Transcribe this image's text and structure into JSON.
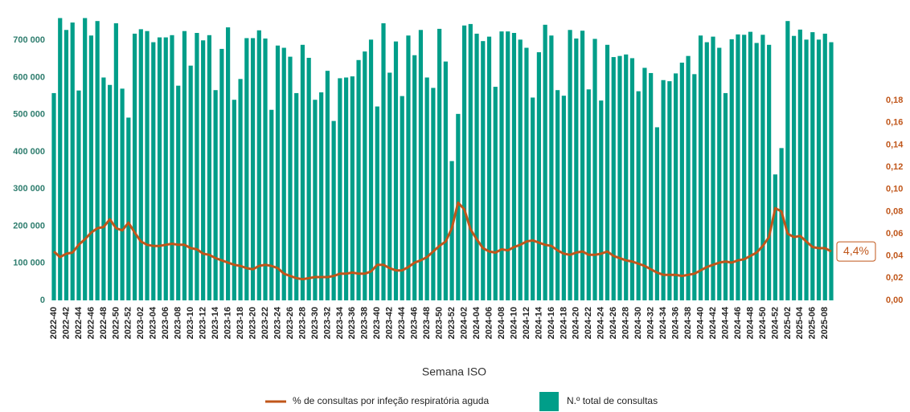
{
  "chart_data": {
    "type": "bar",
    "x_label": "Semana ISO",
    "categories": [
      "2022-40",
      null,
      "2022-42",
      null,
      "2022-44",
      null,
      "2022-46",
      null,
      "2022-48",
      null,
      "2022-50",
      null,
      "2022-52",
      null,
      "2023-02",
      null,
      "2023-04",
      null,
      "2023-06",
      null,
      "2023-08",
      null,
      "2023-10",
      null,
      "2023-12",
      null,
      "2023-14",
      null,
      "2023-16",
      null,
      "2023-18",
      null,
      "2023-20",
      null,
      "2023-22",
      null,
      "2023-24",
      null,
      "2023-26",
      null,
      "2023-28",
      null,
      "2023-30",
      null,
      "2023-32",
      null,
      "2023-34",
      null,
      "2023-36",
      null,
      "2023-38",
      null,
      "2023-40",
      null,
      "2023-42",
      null,
      "2023-44",
      null,
      "2023-46",
      null,
      "2023-48",
      null,
      "2023-50",
      null,
      "2023-52",
      null,
      "2024-02",
      null,
      "2024-04",
      null,
      "2024-06",
      null,
      "2024-08",
      null,
      "2024-10",
      null,
      "2024-12",
      null,
      "2024-14",
      null,
      "2024-16",
      null,
      "2024-18",
      null,
      "2024-20",
      null,
      "2024-22",
      null,
      "2024-24",
      null,
      "2024-26",
      null,
      "2024-28",
      null,
      "2024-30",
      null,
      "2024-32",
      null,
      "2024-34",
      null,
      "2024-36",
      null,
      "2024-38",
      null,
      "2024-40",
      null,
      "2024-42",
      null,
      "2024-44",
      null,
      "2024-46",
      null,
      "2024-48",
      null,
      "2024-50",
      null,
      "2024-52",
      null,
      "2025-02",
      null,
      "2025-04",
      null,
      "2025-06",
      null,
      "2025-08",
      null
    ],
    "series": [
      {
        "name": "% de consultas por infeção respiratória aguda",
        "color": "#c0561a",
        "type": "line",
        "axis": "y2",
        "values": [
          0.044,
          0.039,
          0.042,
          0.043,
          0.05,
          0.055,
          0.061,
          0.065,
          0.066,
          0.073,
          0.065,
          0.063,
          0.07,
          0.061,
          0.053,
          0.05,
          0.049,
          0.049,
          0.05,
          0.051,
          0.05,
          0.05,
          0.047,
          0.046,
          0.042,
          0.041,
          0.038,
          0.036,
          0.034,
          0.032,
          0.031,
          0.029,
          0.028,
          0.031,
          0.032,
          0.031,
          0.029,
          0.024,
          0.022,
          0.02,
          0.019,
          0.02,
          0.021,
          0.021,
          0.021,
          0.022,
          0.024,
          0.024,
          0.025,
          0.024,
          0.024,
          0.026,
          0.032,
          0.032,
          0.029,
          0.027,
          0.027,
          0.03,
          0.034,
          0.036,
          0.039,
          0.044,
          0.049,
          0.053,
          0.065,
          0.088,
          0.082,
          0.064,
          0.055,
          0.047,
          0.044,
          0.043,
          0.046,
          0.045,
          0.048,
          0.05,
          0.053,
          0.054,
          0.052,
          0.05,
          0.049,
          0.045,
          0.042,
          0.041,
          0.043,
          0.044,
          0.041,
          0.041,
          0.042,
          0.044,
          0.04,
          0.038,
          0.036,
          0.035,
          0.033,
          0.031,
          0.028,
          0.025,
          0.023,
          0.023,
          0.023,
          0.022,
          0.023,
          0.024,
          0.027,
          0.03,
          0.032,
          0.034,
          0.035,
          0.034,
          0.036,
          0.037,
          0.04,
          0.043,
          0.049,
          0.057,
          0.083,
          0.08,
          0.06,
          0.057,
          0.058,
          0.053,
          0.048,
          0.047,
          0.047,
          0.044
        ]
      },
      {
        "name": "N.º total de consultas",
        "color": "#009e89",
        "type": "bar",
        "values": [
          558000,
          760000,
          728000,
          748000,
          565000,
          760000,
          713000,
          752000,
          600000,
          580000,
          746000,
          570000,
          492000,
          718000,
          730000,
          725000,
          695000,
          708000,
          708000,
          714000,
          578000,
          725000,
          632000,
          720000,
          700000,
          714000,
          566000,
          677000,
          735000,
          540000,
          596000,
          706000,
          706000,
          727000,
          705000,
          513000,
          686000,
          680000,
          656000,
          558000,
          688000,
          653000,
          540000,
          560000,
          618000,
          483000,
          598000,
          600000,
          603000,
          647000,
          670000,
          702000,
          522000,
          746000,
          613000,
          697000,
          550000,
          713000,
          660000,
          728000,
          600000,
          572000,
          731000,
          643000,
          375000,
          502000,
          740000,
          744000,
          718000,
          698000,
          710000,
          575000,
          724000,
          724000,
          720000,
          702000,
          680000,
          546000,
          668000,
          742000,
          713000,
          566000,
          551000,
          728000,
          705000,
          726000,
          568000,
          704000,
          538000,
          688000,
          655000,
          658000,
          662000,
          652000,
          563000,
          626000,
          612000,
          466000,
          593000,
          590000,
          611000,
          640000,
          658000,
          609000,
          713000,
          695000,
          710000,
          680000,
          558000,
          703000,
          716000,
          715000,
          723000,
          693000,
          715000,
          688000,
          339000,
          410000,
          752000,
          712000,
          729000,
          702000,
          722000,
          702000,
          718000,
          695000
        ]
      }
    ],
    "ylim": [
      0,
      800000
    ],
    "yticks": [
      0,
      {
        "value": 100000,
        "label": "100 000"
      },
      {
        "value": 200000,
        "label": "200 000"
      },
      {
        "value": 300000,
        "label": "300 000"
      },
      {
        "value": 400000,
        "label": "400 000"
      },
      {
        "value": 500000,
        "label": "500 000"
      },
      {
        "value": 600000,
        "label": "600 000"
      },
      {
        "value": 700000,
        "label": "700 000"
      }
    ],
    "y2lim": [
      0,
      0.2675
    ],
    "y2ticks": [
      {
        "value": 0,
        "label": "0,00"
      },
      {
        "value": 0.02,
        "label": "0,02"
      },
      {
        "value": 0.04,
        "label": "0,04"
      },
      {
        "value": 0.06,
        "label": "0,06"
      },
      {
        "value": 0.08,
        "label": "0,08"
      },
      {
        "value": 0.1,
        "label": "0,10"
      },
      {
        "value": 0.12,
        "label": "0,12"
      },
      {
        "value": 0.14,
        "label": "0,14"
      },
      {
        "value": 0.16,
        "label": "0,16"
      },
      {
        "value": 0.18,
        "label": "0,18"
      }
    ],
    "annotation": "4,4%"
  }
}
